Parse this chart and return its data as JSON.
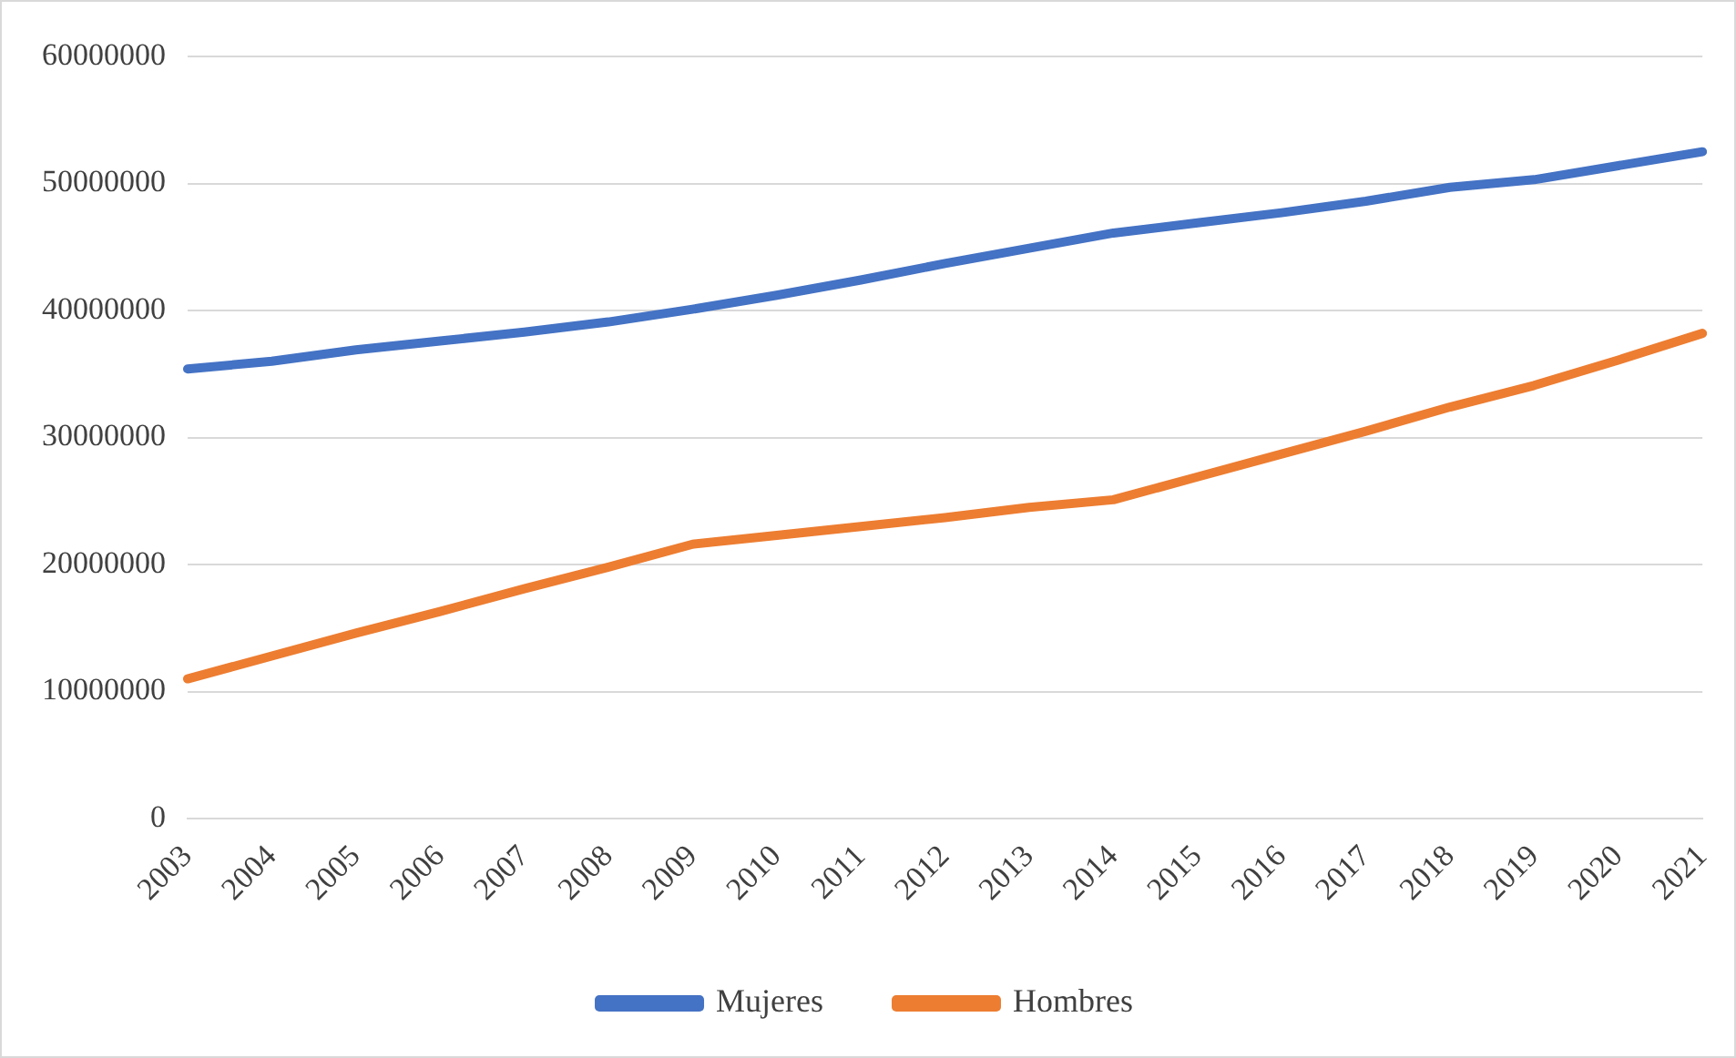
{
  "chart_data": {
    "type": "line",
    "categories": [
      "2003",
      "2004",
      "2005",
      "2006",
      "2007",
      "2008",
      "2009",
      "2010",
      "2011",
      "2012",
      "2013",
      "2014",
      "2015",
      "2016",
      "2017",
      "2018",
      "2019",
      "2020",
      "2021"
    ],
    "series": [
      {
        "name": "Mujeres",
        "color": "#4472c4",
        "values": [
          35400000,
          36000000,
          36900000,
          37600000,
          38300000,
          39100000,
          40100000,
          41200000,
          42400000,
          43700000,
          44900000,
          46100000,
          46900000,
          47700000,
          48600000,
          49700000,
          50300000,
          51400000,
          52500000
        ]
      },
      {
        "name": "Hombres",
        "color": "#ed7d31",
        "values": [
          11000000,
          12800000,
          14600000,
          16300000,
          18100000,
          19800000,
          21600000,
          22300000,
          23000000,
          23700000,
          24500000,
          25100000,
          26900000,
          28700000,
          30500000,
          32400000,
          34100000,
          36100000,
          38200000
        ]
      }
    ],
    "ylim": [
      0,
      60000000
    ],
    "yticks": [
      0,
      10000000,
      20000000,
      30000000,
      40000000,
      50000000,
      60000000
    ],
    "grid": "y",
    "legend": "bottom",
    "marker": "none",
    "line_style": "solid"
  }
}
